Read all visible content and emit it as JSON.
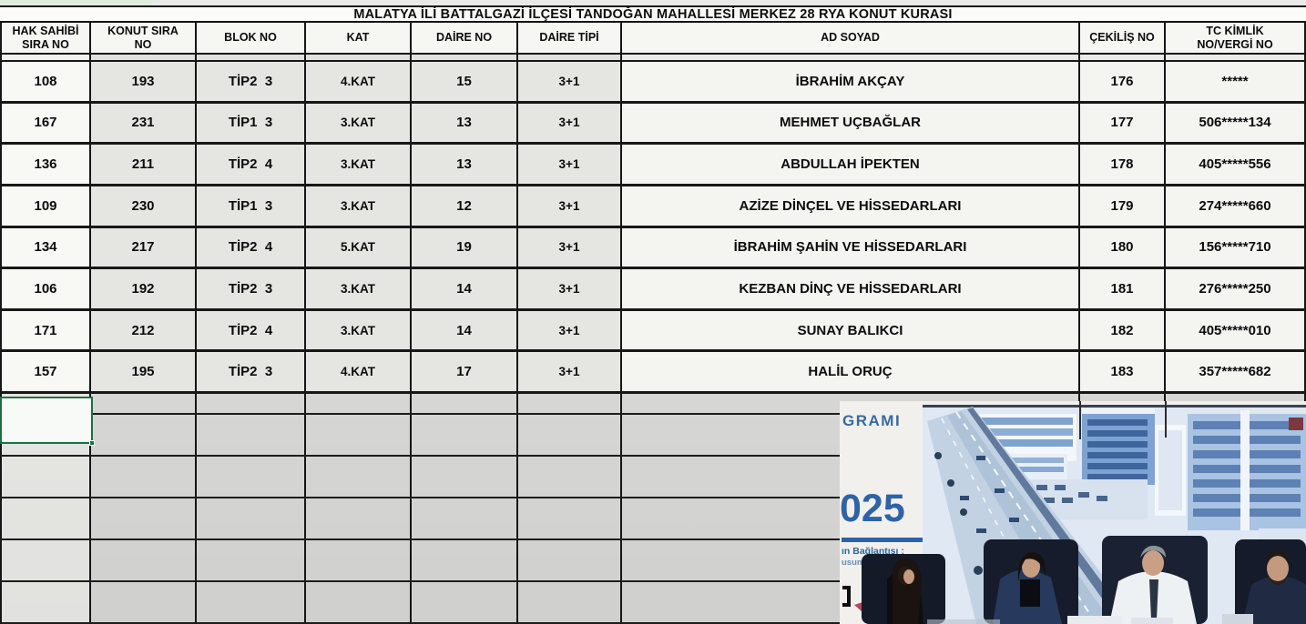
{
  "table": {
    "title": "MALATYA İLİ BATTALGAZİ İLÇESİ TANDOĞAN MAHALLESİ MERKEZ 28 RYA KONUT KURASI",
    "columns": [
      "HAK SAHİBİ\nSIRA NO",
      "KONUT SIRA\nNO",
      "BLOK NO",
      "KAT",
      "DAİRE NO",
      "DAİRE TİPİ",
      "AD SOYAD",
      "ÇEKİLİŞ NO",
      "TC KİMLİK\nNO/VERGİ NO"
    ],
    "rows": [
      [
        "108",
        "193",
        "TİP2  3",
        "4.KAT",
        "15",
        "3+1",
        "İBRAHİM AKÇAY",
        "176",
        "*****"
      ],
      [
        "167",
        "231",
        "TİP1  3",
        "3.KAT",
        "13",
        "3+1",
        "MEHMET UÇBAĞLAR",
        "177",
        "506*****134"
      ],
      [
        "136",
        "211",
        "TİP2  4",
        "3.KAT",
        "13",
        "3+1",
        "ABDULLAH İPEKTEN",
        "178",
        "405*****556"
      ],
      [
        "109",
        "230",
        "TİP1  3",
        "3.KAT",
        "12",
        "3+1",
        "AZİZE DİNÇEL VE HİSSEDARLARI",
        "179",
        "274*****660"
      ],
      [
        "134",
        "217",
        "TİP2  4",
        "5.KAT",
        "19",
        "3+1",
        "İBRAHİM ŞAHİN VE HİSSEDARLARI",
        "180",
        "156*****710"
      ],
      [
        "106",
        "192",
        "TİP2  3",
        "3.KAT",
        "14",
        "3+1",
        "KEZBAN DİNÇ VE HİSSEDARLARI",
        "181",
        "276*****250"
      ],
      [
        "171",
        "212",
        "TİP2  4",
        "3.KAT",
        "14",
        "3+1",
        "SUNAY BALIKCI",
        "182",
        "405*****010"
      ],
      [
        "157",
        "195",
        "TİP2  3",
        "4.KAT",
        "17",
        "3+1",
        "HALİL ORUÇ",
        "183",
        "357*****682"
      ]
    ],
    "empty_row_count": 6
  },
  "video": {
    "slide": {
      "line1": "GRAMI",
      "line2": "025",
      "line3": "ın Bağlantısı :",
      "line4": "usumbask"
    }
  },
  "colors": {
    "slide_accent_blue": "#2d63a7",
    "selection_green": "#1d7044",
    "grid_line": "#161616",
    "data_row_gray": "#e5e5e2",
    "photo_tint_blue": "#9fc0e4"
  }
}
